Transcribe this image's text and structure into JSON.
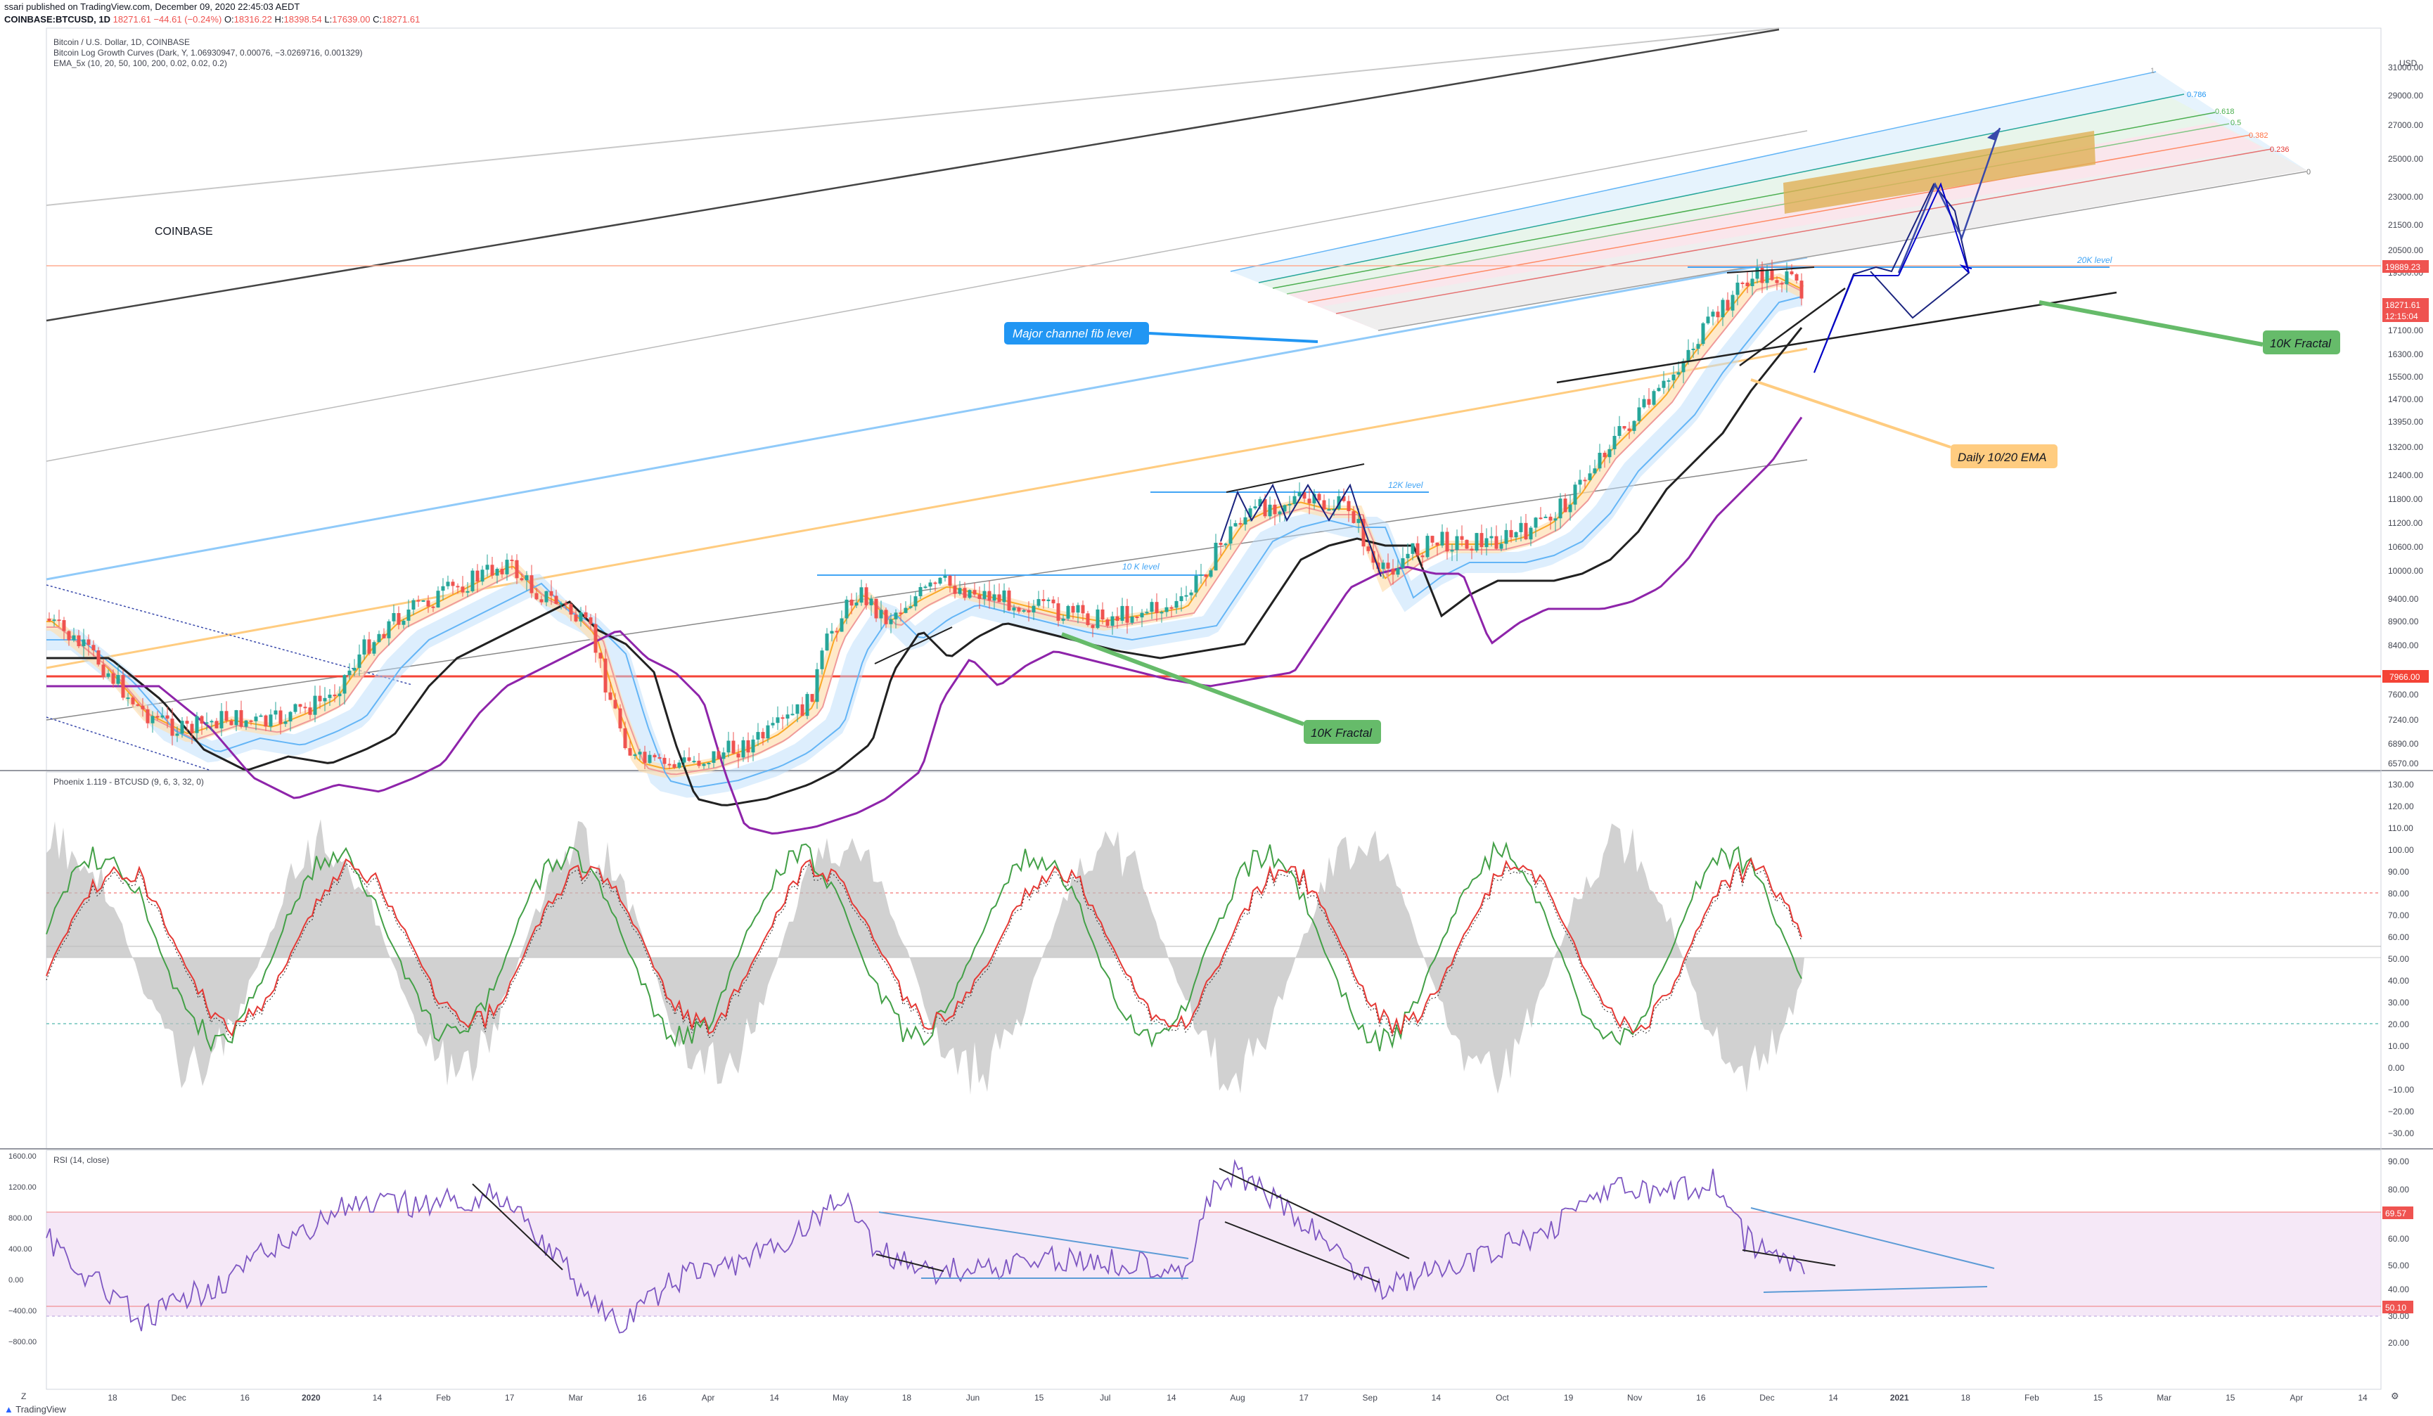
{
  "header": {
    "published": "ssari published on TradingView.com, December 09, 2020 22:45:03 AEDT",
    "symbol": "COINBASE:BTCUSD, 1D",
    "last": "18271.61",
    "change": "−44.61 (−0.24%)",
    "open_label": "O:",
    "open": "18316.22",
    "high_label": "H:",
    "high": "18398.54",
    "low_label": "L:",
    "low": "17639.00",
    "close_label": "C:",
    "close": "18271.61"
  },
  "main_pane": {
    "title": "Bitcoin / U.S. Dollar, 1D, COINBASE",
    "indicator1": "Bitcoin Log Growth Curves (Dark, Y, 1.06930947, 0.00076, −3.0269716, 0.001329)",
    "indicator2": "EMA_5x (10, 20, 50, 100, 200, 0.02, 0.02, 0.2)",
    "watermark": "COINBASE",
    "price_axis": [
      "31000.00",
      "29000.00",
      "27000.00",
      "25000.00",
      "23000.00",
      "21500.00",
      "20500.00",
      "19500.00",
      "17100.00",
      "16300.00",
      "15500.00",
      "14700.00",
      "13950.00",
      "13200.00",
      "12400.00",
      "11800.00",
      "11200.00",
      "10600.00",
      "10000.00",
      "9400.00",
      "8900.00",
      "8400.00",
      "7600.00",
      "7240.00",
      "6890.00",
      "6570.00"
    ],
    "currency": "USD",
    "tags": {
      "level_20k": "19889.23",
      "last": "18271.61",
      "countdown": "12:15:04",
      "level_8k": "7966.00"
    },
    "annotations": {
      "fib_786": "0.786",
      "fib_618": "0.618",
      "fib_5": "0.5",
      "fib_382": "0.382",
      "fib_236": "0.236",
      "fib_0": "0",
      "fib_1": "1",
      "level_20k": "20K level",
      "level_12k": "12K level",
      "level_10k": "10 K level",
      "major_channel": "Major channel fib level",
      "fractal_10k_right": "10K Fractal",
      "fractal_10k_left": "10K Fractal",
      "daily_ema": "Daily 10/20 EMA"
    },
    "colors": {
      "up": "#26a69a",
      "down": "#ef5350",
      "ema10": "#f9a825",
      "ema20": "#ef9a9a",
      "ema50": "#64b5f6",
      "ema100": "#212121",
      "ema200": "#8e24aa",
      "support": "#f44336"
    }
  },
  "phoenix_pane": {
    "title": "Phoenix 1.119 - BTCUSD (9, 6, 3, 32, 0)",
    "axis": [
      "130.00",
      "120.00",
      "110.00",
      "100.00",
      "90.00",
      "80.00",
      "70.00",
      "60.00",
      "50.00",
      "40.00",
      "30.00",
      "20.00",
      "10.00",
      "0.00",
      "−10.00",
      "−20.00",
      "−30.00"
    ]
  },
  "rsi_pane": {
    "title": "RSI (14, close)",
    "axis": [
      "90.00",
      "80.00",
      "60.00",
      "50.00",
      "40.00",
      "30.00",
      "20.00"
    ],
    "left_axis": [
      "1600.00",
      "1200.00",
      "800.00",
      "400.00",
      "0.00",
      "−400.00",
      "−800.00"
    ],
    "tags": {
      "upper": "69.57",
      "current": "50.10"
    }
  },
  "time_axis": [
    "18",
    "Dec",
    "16",
    "2020",
    "14",
    "Feb",
    "17",
    "Mar",
    "16",
    "Apr",
    "14",
    "May",
    "18",
    "Jun",
    "15",
    "Jul",
    "14",
    "Aug",
    "17",
    "Sep",
    "14",
    "Oct",
    "19",
    "Nov",
    "16",
    "Dec",
    "14",
    "2021",
    "18",
    "Feb",
    "15",
    "Mar",
    "15",
    "Apr",
    "14"
  ],
  "footer": {
    "brand": "TradingView",
    "tz": "Z"
  }
}
